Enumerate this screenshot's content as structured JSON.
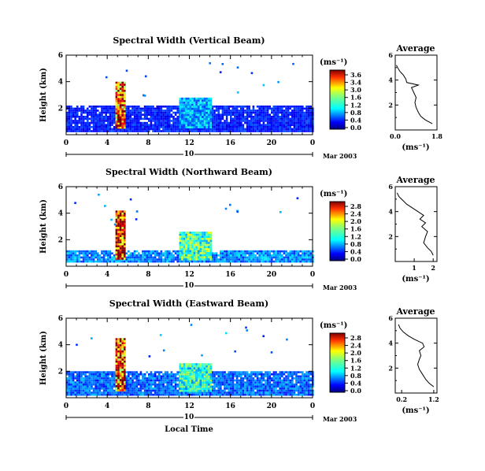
{
  "panels": [
    {
      "title": "Spectral Width (Vertical Beam)",
      "colorbar_ticks": [
        "3.6",
        "3.4",
        "3.0",
        "1.6",
        "1.2",
        "0.8",
        "0.4",
        "0.0"
      ],
      "profile_title": "Average",
      "profile_xticks": [
        "0.0",
        "1.8"
      ],
      "profile_xlim": [
        0,
        1.8
      ]
    },
    {
      "title": "Spectral Width (Northward Beam)",
      "colorbar_ticks": [
        "2.8",
        "2.4",
        "2.0",
        "1.6",
        "1.2",
        "0.8",
        "0.4",
        "0.0"
      ],
      "profile_title": "Average",
      "profile_xticks": [
        "1",
        "2"
      ],
      "profile_xlim": [
        0,
        2.2
      ]
    },
    {
      "title": "Spectral Width (Eastward Beam)",
      "colorbar_ticks": [
        "2.8",
        "2.4",
        "2.0",
        "1.6",
        "1.2",
        "0.8",
        "0.4",
        "0.0"
      ],
      "profile_title": "Average",
      "profile_xticks": [
        "0.2",
        "1.2"
      ],
      "profile_xlim": [
        0,
        1.3
      ]
    }
  ],
  "common": {
    "ylabel": "Height (km)",
    "xlabel": "Local Time",
    "unit": "(ms⁻¹)",
    "xticks": [
      "0",
      "4",
      "8",
      "12",
      "16",
      "20",
      "0"
    ],
    "yticks": [
      "6",
      "4",
      "2"
    ],
    "profile_yticks": [
      "6",
      "4",
      "2"
    ],
    "date_day": "10",
    "date_label": "Mar 2003"
  },
  "chart_data": [
    {
      "type": "heatmap",
      "title": "Spectral Width (Vertical Beam)",
      "ylabel": "Height (km)",
      "xlabel": "Local Time",
      "xlim": [
        0,
        24
      ],
      "ylim": [
        0,
        6
      ],
      "colorbar_label": "(ms⁻¹)",
      "colorbar_range": [
        0.0,
        3.6
      ],
      "features": [
        {
          "x_range": [
            0,
            24
          ],
          "y_range": [
            0.3,
            2.2
          ],
          "value": 0.6
        },
        {
          "x_range": [
            4.8,
            5.6
          ],
          "y_range": [
            0.5,
            4.0
          ],
          "value": 3.2
        },
        {
          "x_range": [
            11,
            14
          ],
          "y_range": [
            0.5,
            2.8
          ],
          "value": 1.2
        }
      ]
    },
    {
      "type": "line",
      "title": "Average",
      "xlabel": "(ms⁻¹)",
      "xlim": [
        0,
        1.8
      ],
      "ylim": [
        0,
        6
      ],
      "series": [
        {
          "x": [
            1.6,
            1.3,
            1.1,
            1.0,
            0.9,
            0.85,
            0.9,
            0.8,
            0.7,
            1.0,
            0.5,
            0.45,
            0.35,
            0.2,
            0.1,
            0.05
          ],
          "y": [
            0.5,
            0.8,
            1.1,
            1.4,
            1.8,
            2.2,
            2.6,
            3.0,
            3.4,
            3.6,
            3.8,
            4.1,
            4.4,
            4.7,
            5.0,
            5.2
          ]
        }
      ]
    },
    {
      "type": "heatmap",
      "title": "Spectral Width (Northward Beam)",
      "ylabel": "Height (km)",
      "xlabel": "Local Time",
      "xlim": [
        0,
        24
      ],
      "ylim": [
        0,
        6
      ],
      "colorbar_label": "(ms⁻¹)",
      "colorbar_range": [
        0.0,
        2.8
      ],
      "features": [
        {
          "x_range": [
            0,
            24
          ],
          "y_range": [
            0.3,
            1.2
          ],
          "value": 0.8
        },
        {
          "x_range": [
            4.8,
            5.6
          ],
          "y_range": [
            0.5,
            4.2
          ],
          "value": 2.8
        },
        {
          "x_range": [
            11,
            14
          ],
          "y_range": [
            0.5,
            2.6
          ],
          "value": 1.4
        }
      ]
    },
    {
      "type": "line",
      "title": "Average",
      "xlabel": "(ms⁻¹)",
      "xlim": [
        0,
        2.2
      ],
      "ylim": [
        0,
        6
      ],
      "series": [
        {
          "x": [
            2.0,
            1.9,
            1.7,
            1.5,
            1.6,
            1.7,
            1.4,
            1.6,
            1.3,
            1.5,
            1.2,
            0.9,
            0.6,
            0.4,
            0.2,
            0.1
          ],
          "y": [
            0.5,
            0.8,
            1.1,
            1.5,
            2.0,
            2.4,
            2.8,
            3.1,
            3.4,
            3.7,
            4.0,
            4.3,
            4.6,
            4.9,
            5.2,
            5.5
          ]
        }
      ]
    },
    {
      "type": "heatmap",
      "title": "Spectral Width (Eastward Beam)",
      "ylabel": "Height (km)",
      "xlabel": "Local Time",
      "xlim": [
        0,
        24
      ],
      "ylim": [
        0,
        6
      ],
      "colorbar_label": "(ms⁻¹)",
      "colorbar_range": [
        0.0,
        2.8
      ],
      "features": [
        {
          "x_range": [
            0,
            24
          ],
          "y_range": [
            0.3,
            2.0
          ],
          "value": 0.7
        },
        {
          "x_range": [
            4.8,
            5.6
          ],
          "y_range": [
            0.5,
            4.5
          ],
          "value": 2.6
        },
        {
          "x_range": [
            11,
            14
          ],
          "y_range": [
            0.5,
            2.6
          ],
          "value": 1.3
        }
      ]
    },
    {
      "type": "line",
      "title": "Average",
      "xlabel": "(ms⁻¹)",
      "xlim": [
        0,
        1.3
      ],
      "ylim": [
        0,
        6
      ],
      "series": [
        {
          "x": [
            1.2,
            1.05,
            0.95,
            0.85,
            0.75,
            0.7,
            0.75,
            0.8,
            0.75,
            0.9,
            0.85,
            0.6,
            0.4,
            0.25,
            0.15,
            0.1
          ],
          "y": [
            0.5,
            0.8,
            1.1,
            1.5,
            1.9,
            2.3,
            2.7,
            3.0,
            3.4,
            3.7,
            4.0,
            4.3,
            4.6,
            4.9,
            5.2,
            5.5
          ]
        }
      ]
    }
  ]
}
